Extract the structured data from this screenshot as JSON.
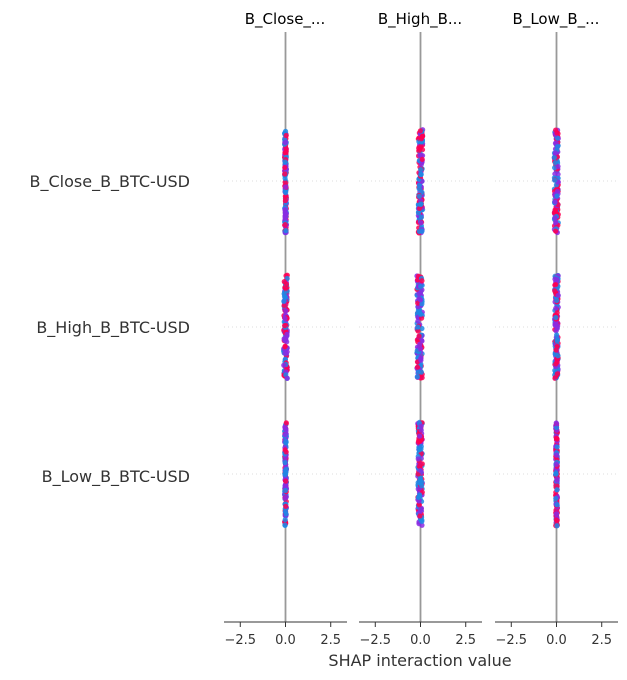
{
  "chart_data": {
    "type": "scatter",
    "subtype": "shap-interaction-beeswarm",
    "xlabel": "SHAP interaction value",
    "panel_titles": [
      "B_Close_...",
      "B_High_B...",
      "B_Low_B_..."
    ],
    "features": [
      "B_Close_B_BTC-USD",
      "B_High_B_BTC-USD",
      "B_Low_B_BTC-USD"
    ],
    "xlim": [
      -3.4,
      3.4
    ],
    "x_ticks": [
      -2.5,
      0.0,
      2.5
    ],
    "x_tick_labels": [
      "−2.5",
      "0.0",
      "2.5"
    ],
    "grid": "dotted horizontal per feature",
    "colors": {
      "high": "#ff0052",
      "mid": "#8a2be2",
      "low": "#1e88e5",
      "zero_line": "#999999",
      "axis": "#333333",
      "grid": "#dddddd"
    },
    "cells": [
      [
        {
          "x_min": -0.05,
          "x_max": 0.05,
          "color_mix": "mixed"
        },
        {
          "x_min": -0.12,
          "x_max": 0.12,
          "color_mix": "mixed"
        },
        {
          "x_min": -0.12,
          "x_max": 0.1,
          "color_mix": "mixed"
        }
      ],
      [
        {
          "x_min": -0.1,
          "x_max": 0.1,
          "color_mix": "mixed"
        },
        {
          "x_min": -0.2,
          "x_max": 0.1,
          "color_mix": "mixed"
        },
        {
          "x_min": -0.1,
          "x_max": 0.1,
          "color_mix": "mixed"
        }
      ],
      [
        {
          "x_min": -0.05,
          "x_max": 0.05,
          "color_mix": "mixed"
        },
        {
          "x_min": -0.15,
          "x_max": 0.1,
          "color_mix": "mixed"
        },
        {
          "x_min": -0.05,
          "x_max": 0.05,
          "color_mix": "mixed"
        }
      ]
    ]
  }
}
